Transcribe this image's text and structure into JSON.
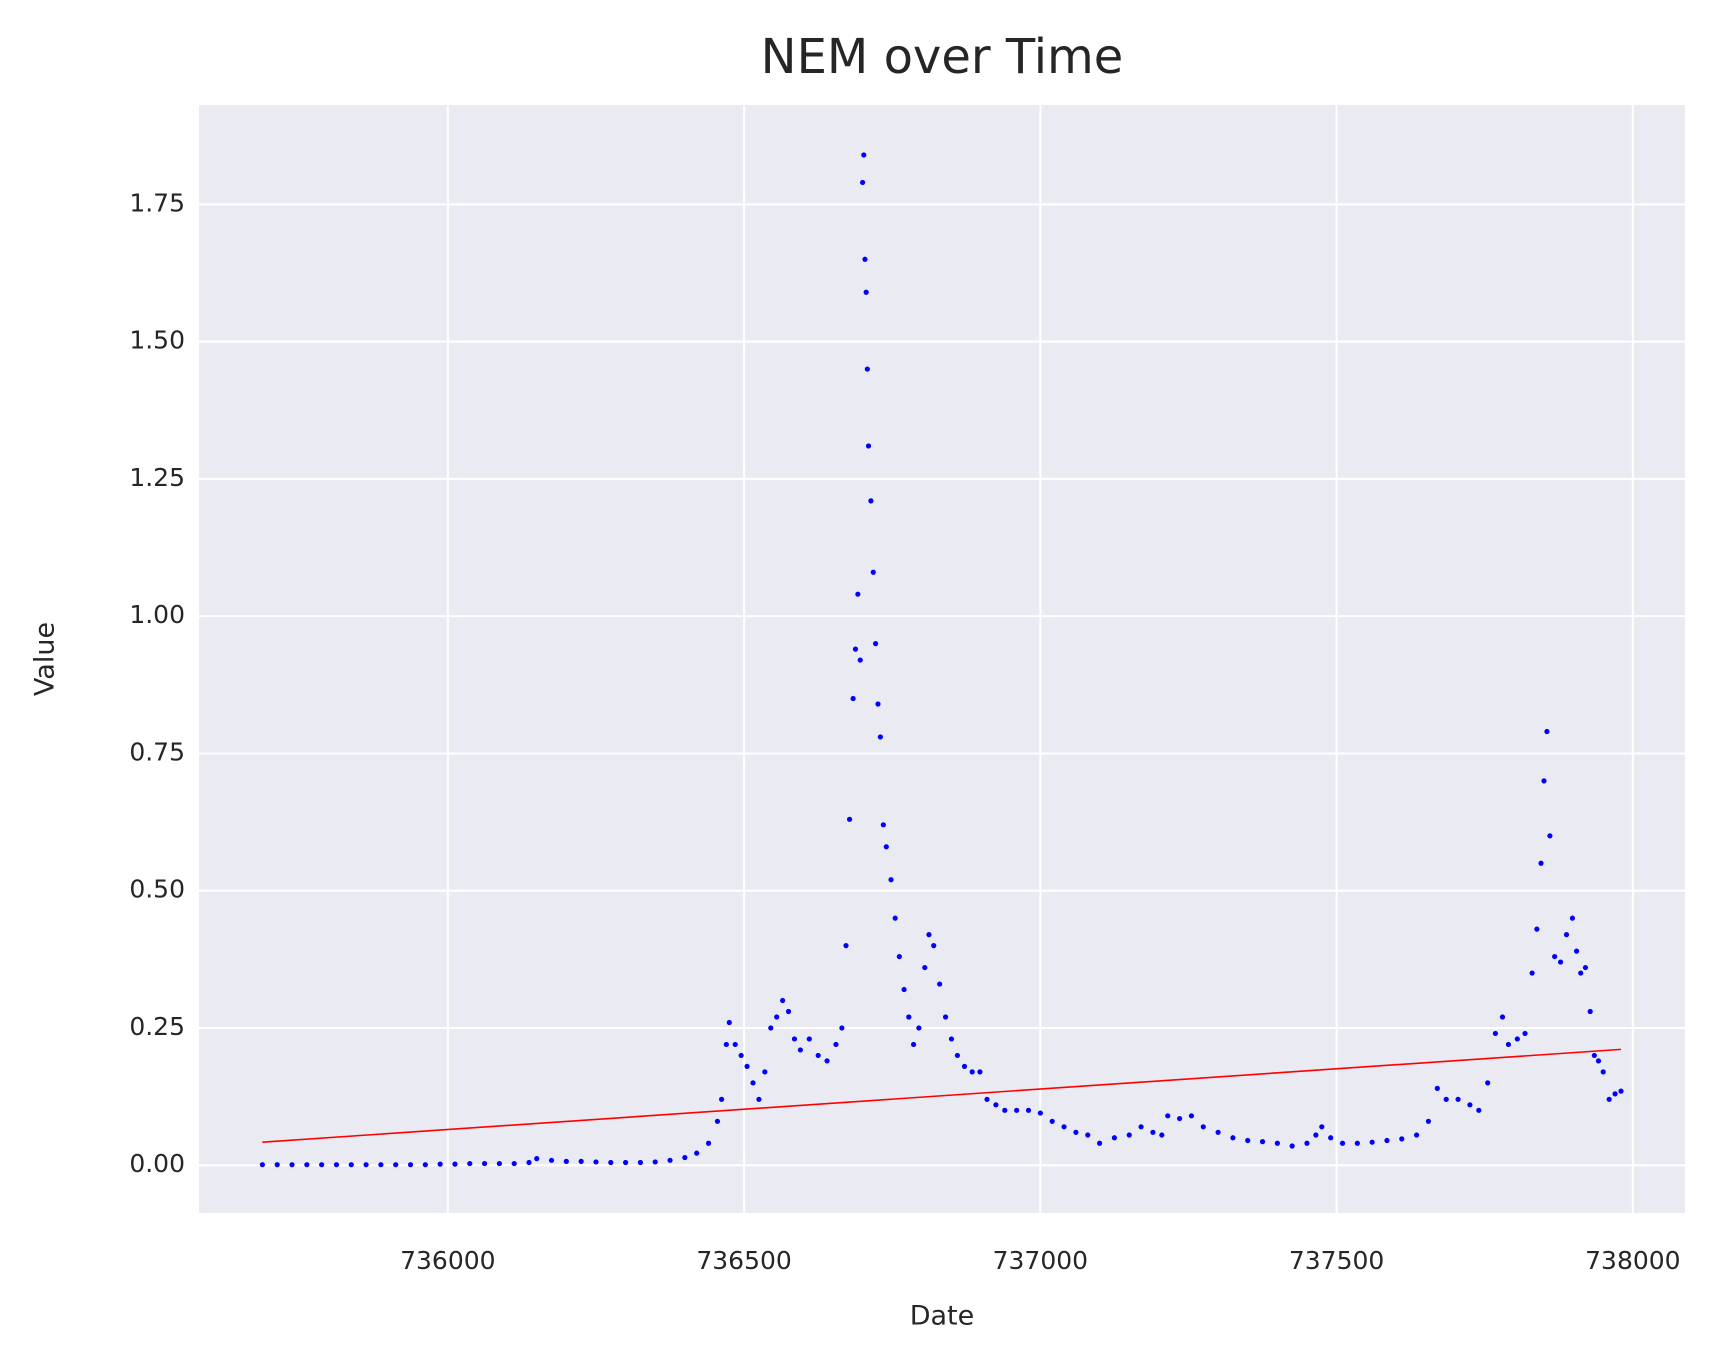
{
  "chart_data": {
    "type": "scatter",
    "title": "NEM over Time",
    "x_label": "Date",
    "y_label": "Value",
    "xlim": [
      735580,
      738088
    ],
    "ylim": [
      -0.087,
      1.931
    ],
    "xticks": [
      736000,
      736500,
      737000,
      737500,
      738000
    ],
    "yticks": [
      {
        "value": 0,
        "label": "0.00"
      },
      {
        "value": 0.25,
        "label": "0.25"
      },
      {
        "value": 0.5,
        "label": "0.50"
      },
      {
        "value": 0.75,
        "label": "0.75"
      },
      {
        "value": 1,
        "label": "1.00"
      },
      {
        "value": 1.25,
        "label": "1.25"
      },
      {
        "value": 1.5,
        "label": "1.50"
      },
      {
        "value": 1.75,
        "label": "1.75"
      }
    ],
    "grid": true,
    "series": [
      {
        "type": "scatter",
        "color": "#0000ff",
        "x": [
          735687,
          735712,
          735737,
          735762,
          735787,
          735812,
          735837,
          735862,
          735887,
          735912,
          735937,
          735962,
          735987,
          736012,
          736037,
          736062,
          736087,
          736112,
          736137,
          736150,
          736175,
          736200,
          736225,
          736250,
          736275,
          736300,
          736325,
          736350,
          736375,
          736400,
          736420,
          736440,
          736455,
          736462,
          736470,
          736475,
          736485,
          736495,
          736505,
          736515,
          736525,
          736535,
          736545,
          736555,
          736565,
          736575,
          736585,
          736595,
          736610,
          736625,
          736640,
          736655,
          736665,
          736672,
          736678,
          736684,
          736688,
          736692,
          736696,
          736700,
          736702,
          736704,
          736706,
          736708,
          736710,
          736714,
          736718,
          736722,
          736726,
          736730,
          736735,
          736740,
          736748,
          736755,
          736762,
          736770,
          736778,
          736786,
          736795,
          736805,
          736812,
          736820,
          736830,
          736840,
          736850,
          736860,
          736872,
          736885,
          736898,
          736910,
          736925,
          736940,
          736960,
          736980,
          737000,
          737020,
          737040,
          737060,
          737080,
          737100,
          737125,
          737150,
          737170,
          737190,
          737205,
          737215,
          737235,
          737255,
          737275,
          737300,
          737325,
          737350,
          737375,
          737400,
          737425,
          737450,
          737465,
          737475,
          737490,
          737510,
          737535,
          737560,
          737585,
          737610,
          737635,
          737655,
          737670,
          737685,
          737705,
          737725,
          737740,
          737755,
          737768,
          737780,
          737790,
          737805,
          737818,
          737830,
          737838,
          737845,
          737850,
          737855,
          737860,
          737868,
          737878,
          737888,
          737898,
          737905,
          737912,
          737920,
          737928,
          737935,
          737942,
          737950,
          737960,
          737970,
          737980
        ],
        "values": [
          0.001,
          0.001,
          0.001,
          0.001,
          0.001,
          0.001,
          0.001,
          0.001,
          0.001,
          0.001,
          0.001,
          0.001,
          0.002,
          0.002,
          0.003,
          0.003,
          0.003,
          0.003,
          0.005,
          0.012,
          0.009,
          0.007,
          0.007,
          0.006,
          0.005,
          0.005,
          0.005,
          0.006,
          0.009,
          0.014,
          0.022,
          0.04,
          0.08,
          0.12,
          0.22,
          0.26,
          0.22,
          0.2,
          0.18,
          0.15,
          0.12,
          0.17,
          0.25,
          0.27,
          0.3,
          0.28,
          0.23,
          0.21,
          0.23,
          0.2,
          0.19,
          0.22,
          0.25,
          0.4,
          0.63,
          0.85,
          0.94,
          1.04,
          0.92,
          1.79,
          1.84,
          1.65,
          1.59,
          1.45,
          1.31,
          1.21,
          1.08,
          0.95,
          0.84,
          0.78,
          0.62,
          0.58,
          0.52,
          0.45,
          0.38,
          0.32,
          0.27,
          0.22,
          0.25,
          0.36,
          0.42,
          0.4,
          0.33,
          0.27,
          0.23,
          0.2,
          0.18,
          0.17,
          0.17,
          0.12,
          0.11,
          0.1,
          0.1,
          0.1,
          0.095,
          0.08,
          0.07,
          0.06,
          0.055,
          0.04,
          0.05,
          0.055,
          0.07,
          0.06,
          0.055,
          0.09,
          0.085,
          0.09,
          0.07,
          0.06,
          0.05,
          0.045,
          0.043,
          0.04,
          0.035,
          0.04,
          0.055,
          0.07,
          0.05,
          0.04,
          0.04,
          0.042,
          0.045,
          0.048,
          0.055,
          0.08,
          0.14,
          0.12,
          0.12,
          0.11,
          0.1,
          0.15,
          0.24,
          0.27,
          0.22,
          0.23,
          0.24,
          0.35,
          0.43,
          0.55,
          0.7,
          0.79,
          0.6,
          0.38,
          0.37,
          0.42,
          0.45,
          0.39,
          0.35,
          0.36,
          0.28,
          0.2,
          0.19,
          0.17,
          0.12,
          0.13,
          0.135
        ]
      },
      {
        "type": "line",
        "color": "#ff0000",
        "x": [
          735687,
          737980
        ],
        "values": [
          0.042,
          0.211
        ]
      }
    ]
  }
}
